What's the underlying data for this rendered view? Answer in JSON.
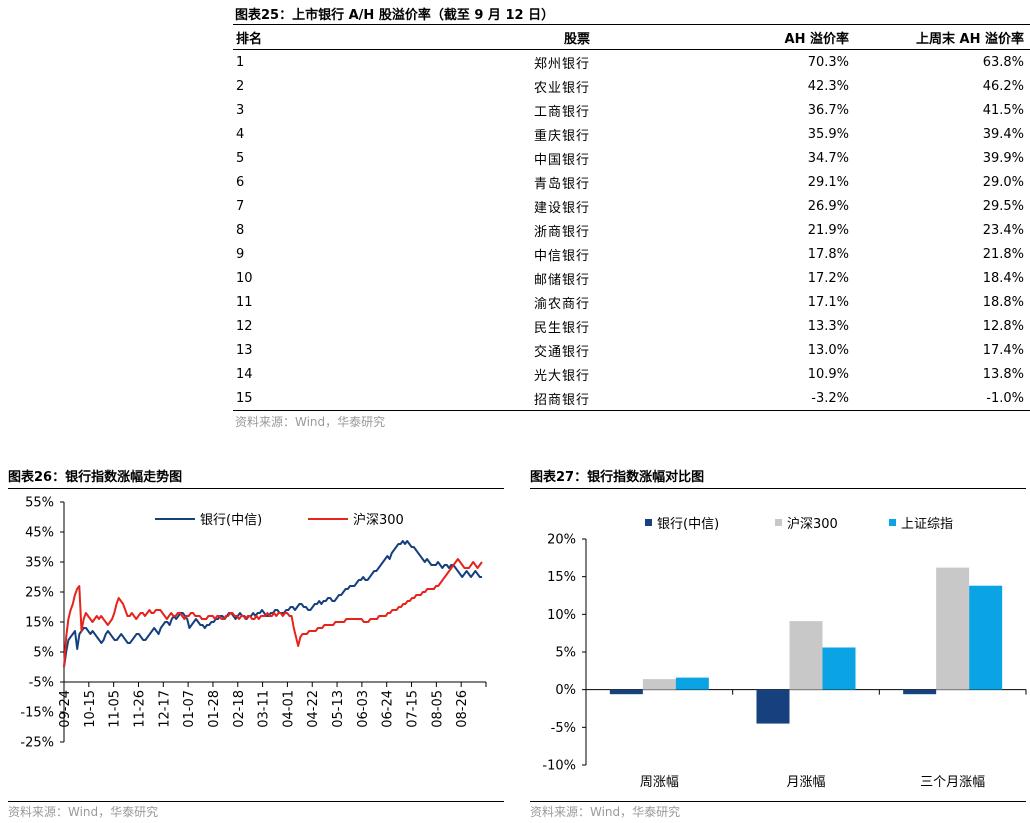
{
  "table": {
    "title": "图表25：上市银行 A/H 股溢价率（截至 9 月 12 日）",
    "headers": [
      "排名",
      "股票",
      "AH 溢价率",
      "上周末 AH 溢价率"
    ],
    "rows": [
      [
        "1",
        "郑州银行",
        "70.3%",
        "63.8%"
      ],
      [
        "2",
        "农业银行",
        "42.3%",
        "46.2%"
      ],
      [
        "3",
        "工商银行",
        "36.7%",
        "41.5%"
      ],
      [
        "4",
        "重庆银行",
        "35.9%",
        "39.4%"
      ],
      [
        "5",
        "中国银行",
        "34.7%",
        "39.9%"
      ],
      [
        "6",
        "青岛银行",
        "29.1%",
        "29.0%"
      ],
      [
        "7",
        "建设银行",
        "26.9%",
        "29.5%"
      ],
      [
        "8",
        "浙商银行",
        "21.9%",
        "23.4%"
      ],
      [
        "9",
        "中信银行",
        "17.8%",
        "21.8%"
      ],
      [
        "10",
        "邮储银行",
        "17.2%",
        "18.4%"
      ],
      [
        "11",
        "渝农商行",
        "17.1%",
        "18.8%"
      ],
      [
        "12",
        "民生银行",
        "13.3%",
        "12.8%"
      ],
      [
        "13",
        "交通银行",
        "13.0%",
        "17.4%"
      ],
      [
        "14",
        "光大银行",
        "10.9%",
        "13.8%"
      ],
      [
        "15",
        "招商银行",
        "-3.2%",
        "-1.0%"
      ]
    ],
    "source": "资料来源：Wind，华泰研究"
  },
  "chart26": {
    "title": "图表26：银行指数涨幅走势图",
    "source": "资料来源：Wind，华泰研究"
  },
  "chart27": {
    "title": "图表27：银行指数涨幅对比图",
    "source": "资料来源：Wind，华泰研究"
  },
  "colors": {
    "navy": "#16407e",
    "red": "#e8231c",
    "gray": "#c8c8c8",
    "sky": "#0aa4e4",
    "axis": "#000000"
  },
  "chart_data": [
    {
      "type": "line",
      "title": "银行指数涨幅走势图",
      "x_ticks": [
        "09-24",
        "10-15",
        "11-05",
        "11-26",
        "12-17",
        "01-07",
        "01-28",
        "02-18",
        "03-11",
        "04-01",
        "04-22",
        "05-13",
        "06-03",
        "06-24",
        "07-15",
        "08-05",
        "08-26"
      ],
      "y_ticks": [
        "55%",
        "45%",
        "35%",
        "25%",
        "15%",
        "5%",
        "-5%",
        "-15%",
        "-25%"
      ],
      "ylim": [
        -25,
        55
      ],
      "legend": [
        "银行(中信)",
        "沪深300"
      ],
      "series": [
        {
          "name": "银行(中信)",
          "color": "#16407e",
          "values": [
            0,
            5,
            9,
            10,
            11,
            12,
            6,
            11,
            12,
            13,
            13,
            12,
            11,
            12,
            11,
            10,
            9,
            8,
            9,
            11,
            12,
            11,
            10,
            9,
            9,
            10,
            11,
            10,
            9,
            8,
            8,
            9,
            10,
            11,
            11,
            10,
            9,
            9,
            10,
            11,
            12,
            13,
            12,
            11,
            13,
            14,
            15,
            15,
            14,
            16,
            17,
            16,
            17,
            18,
            18,
            17,
            16,
            13,
            14,
            15,
            16,
            15,
            14,
            14,
            13,
            14,
            14,
            15,
            15,
            16,
            16,
            17,
            17,
            16,
            17,
            18,
            18,
            17,
            16,
            17,
            18,
            17,
            17,
            16,
            17,
            17,
            18,
            17,
            18,
            18,
            19,
            18,
            17,
            17,
            18,
            18,
            19,
            19,
            18,
            18,
            18,
            19,
            19,
            20,
            20,
            19,
            20,
            21,
            21,
            20,
            20,
            19,
            19,
            20,
            21,
            21,
            22,
            21,
            22,
            22,
            23,
            23,
            22,
            22,
            23,
            24,
            24,
            25,
            26,
            26,
            27,
            27,
            27,
            28,
            29,
            29,
            30,
            29,
            29,
            30,
            31,
            32,
            32,
            33,
            34,
            35,
            36,
            37,
            36,
            38,
            39,
            40,
            41,
            41,
            42,
            41,
            42,
            41,
            40,
            40,
            39,
            38,
            37,
            36,
            35,
            36,
            35,
            34,
            34,
            34,
            35,
            34,
            33,
            34,
            34,
            33,
            34,
            34,
            33,
            32,
            31,
            30,
            31,
            32,
            31,
            30,
            31,
            32,
            31,
            30,
            30
          ]
        },
        {
          "name": "沪深300",
          "color": "#e8231c",
          "values": [
            0,
            10,
            16,
            19,
            21,
            24,
            26,
            27,
            12,
            16,
            18,
            17,
            16,
            15,
            16,
            17,
            16,
            17,
            16,
            15,
            14,
            15,
            16,
            18,
            21,
            23,
            22,
            21,
            19,
            17,
            17,
            18,
            17,
            16,
            17,
            18,
            18,
            17,
            18,
            19,
            18,
            18,
            19,
            19,
            19,
            18,
            17,
            16,
            17,
            18,
            17,
            17,
            18,
            18,
            17,
            16,
            17,
            17,
            18,
            18,
            17,
            17,
            17,
            16,
            16,
            16,
            17,
            17,
            17,
            16,
            17,
            17,
            16,
            16,
            17,
            17,
            18,
            18,
            17,
            17,
            16,
            17,
            17,
            16,
            17,
            17,
            16,
            16,
            17,
            16,
            17,
            17,
            17,
            18,
            17,
            17,
            18,
            17,
            18,
            18,
            17,
            18,
            18,
            17,
            17,
            13,
            10,
            7,
            10,
            11,
            11,
            11,
            12,
            12,
            12,
            12,
            13,
            13,
            13,
            14,
            14,
            14,
            14,
            14,
            15,
            15,
            15,
            15,
            15,
            16,
            16,
            16,
            16,
            16,
            16,
            16,
            16,
            15,
            15,
            15,
            16,
            16,
            16,
            16,
            17,
            17,
            17,
            17,
            18,
            18,
            19,
            19,
            19,
            20,
            20,
            21,
            21,
            22,
            22,
            23,
            23,
            24,
            24,
            24,
            25,
            25,
            26,
            26,
            26,
            26,
            27,
            27,
            28,
            29,
            30,
            31,
            32,
            33,
            34,
            35,
            36,
            35,
            34,
            33,
            33,
            33,
            34,
            35,
            34,
            33,
            34,
            35
          ]
        }
      ]
    },
    {
      "type": "bar",
      "title": "银行指数涨幅对比图",
      "categories": [
        "周涨幅",
        "月涨幅",
        "三个月涨幅"
      ],
      "y_ticks": [
        "20%",
        "15%",
        "10%",
        "5%",
        "0%",
        "-5%",
        "-10%"
      ],
      "ylim": [
        -10,
        20
      ],
      "series": [
        {
          "name": "银行(中信)",
          "color": "#16407e",
          "values": [
            -0.6,
            -4.5,
            -0.6
          ]
        },
        {
          "name": "沪深300",
          "color": "#c8c8c8",
          "values": [
            1.4,
            9.1,
            16.2
          ]
        },
        {
          "name": "上证综指",
          "color": "#0aa4e4",
          "values": [
            1.6,
            5.6,
            13.8
          ]
        }
      ]
    }
  ]
}
